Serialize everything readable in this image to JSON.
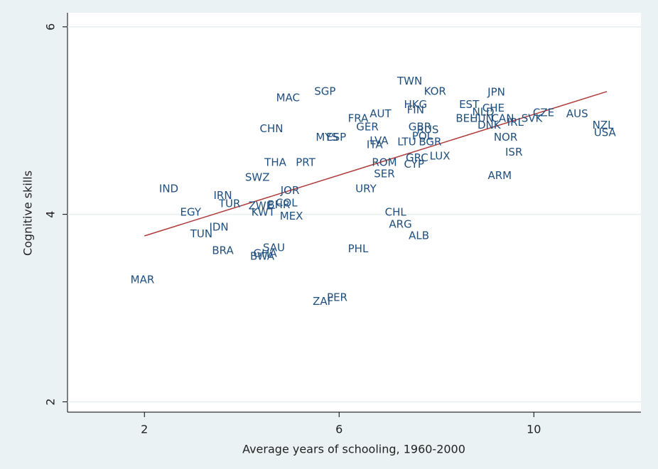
{
  "chart_data": {
    "type": "scatter",
    "x_label": "Average years of schooling, 1960-2000",
    "y_label": "Cognitive skills",
    "xlim": [
      0.42,
      12.2
    ],
    "ylim": [
      1.89,
      6.15
    ],
    "xticks": [
      2,
      6,
      10
    ],
    "yticks": [
      2,
      4,
      6
    ],
    "grid": true,
    "color": "#1f4f7f",
    "labels": [
      "MAR",
      "IND",
      "EGY",
      "TUN",
      "IDN",
      "BRA",
      "IRN",
      "TUR",
      "ZWE",
      "BWA",
      "GHA",
      "SAU",
      "KWT",
      "BHR",
      "COL",
      "JOR",
      "MEX",
      "SWZ",
      "THA",
      "PRT",
      "CHN",
      "MAC",
      "SGP",
      "MYS",
      "ESP",
      "FRA",
      "AUT",
      "GER",
      "ITA",
      "LVA",
      "LTU",
      "URY",
      "ROM",
      "CYP",
      "SER",
      "GRC",
      "CHL",
      "ARG",
      "ALB",
      "PHL",
      "PER",
      "ZAF",
      "TWN",
      "KOR",
      "HKG",
      "FIN",
      "GBR",
      "RUS",
      "POL",
      "BGR",
      "LUX",
      "EST",
      "BEL",
      "HUN",
      "NLD",
      "CHE",
      "JPN",
      "NOR",
      "ISR",
      "ARM",
      "DNK",
      "CAN",
      "IRL",
      "SVK",
      "CZE",
      "AUS",
      "NZL",
      "USA"
    ],
    "x": [
      1.96,
      2.5,
      2.95,
      3.17,
      3.53,
      3.61,
      3.61,
      3.75,
      4.39,
      4.42,
      4.48,
      4.66,
      4.44,
      4.76,
      4.92,
      4.99,
      5.02,
      4.32,
      4.69,
      5.31,
      4.61,
      4.95,
      5.71,
      5.75,
      5.94,
      6.39,
      6.85,
      6.58,
      6.73,
      6.82,
      7.39,
      6.55,
      6.93,
      7.54,
      6.93,
      7.6,
      7.16,
      7.26,
      7.64,
      6.39,
      5.96,
      5.67,
      7.45,
      7.97,
      7.57,
      7.57,
      7.66,
      7.82,
      7.71,
      7.87,
      8.07,
      8.67,
      8.6,
      8.93,
      8.96,
      9.17,
      9.23,
      9.42,
      9.59,
      9.3,
      9.08,
      9.36,
      9.62,
      9.96,
      10.2,
      10.89,
      11.42,
      11.46
    ],
    "y": [
      3.3,
      4.27,
      4.02,
      3.79,
      3.86,
      3.61,
      4.2,
      4.11,
      4.09,
      3.55,
      3.58,
      3.64,
      4.02,
      4.1,
      4.12,
      4.25,
      3.98,
      4.39,
      4.55,
      4.55,
      4.91,
      5.24,
      5.31,
      4.82,
      4.82,
      5.02,
      5.07,
      4.93,
      4.74,
      4.78,
      4.77,
      4.27,
      4.55,
      4.53,
      4.43,
      4.6,
      4.02,
      3.89,
      3.77,
      3.63,
      3.11,
      3.07,
      5.42,
      5.31,
      5.17,
      5.11,
      4.93,
      4.9,
      4.83,
      4.77,
      4.62,
      5.17,
      5.02,
      5.02,
      5.09,
      5.13,
      5.3,
      4.82,
      4.66,
      4.41,
      4.95,
      5.02,
      4.98,
      5.02,
      5.08,
      5.07,
      4.95,
      4.87
    ],
    "fit_line": {
      "x": [
        2,
        11.5
      ],
      "y": [
        3.77,
        5.31
      ],
      "color": "#b03a3a"
    }
  }
}
